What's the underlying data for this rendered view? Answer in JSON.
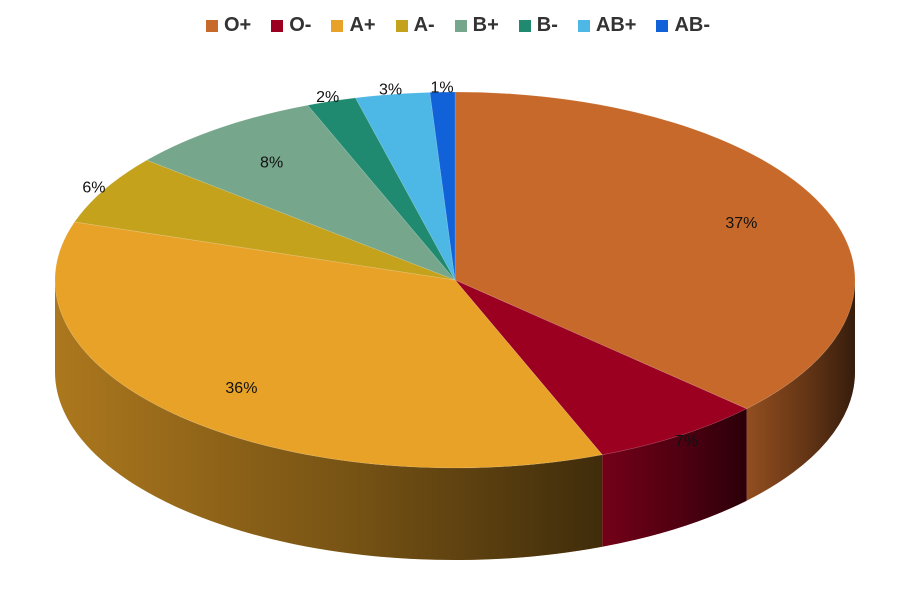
{
  "chart_data": {
    "type": "pie",
    "style": "3d",
    "legend_position": "top",
    "categories": [
      "O+",
      "O-",
      "A+",
      "A-",
      "B+",
      "B-",
      "AB+",
      "AB-"
    ],
    "values": [
      37,
      7,
      36,
      6,
      8,
      2,
      3,
      1
    ],
    "labels": [
      "37%",
      "7%",
      "36%",
      "6%",
      "8%",
      "2%",
      "3%",
      "1%"
    ],
    "colors": [
      "#c6692a",
      "#9b0021",
      "#e8a228",
      "#c4a21c",
      "#76a68b",
      "#1f8a70",
      "#4db7e5",
      "#1162d9"
    ]
  }
}
